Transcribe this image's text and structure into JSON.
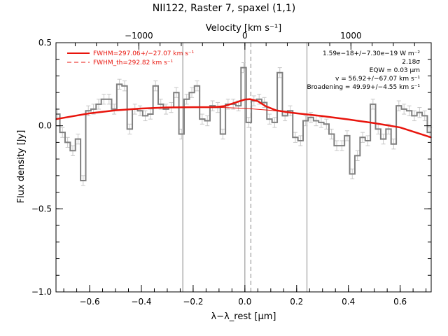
{
  "chart_data": {
    "type": "line",
    "title": "NII122, Raster 7, spaxel (1,1)",
    "xlabel": "λ−λ_rest [μm]",
    "ylabel": "Flux density [Jy]",
    "top_axis_label": "Velocity [km s⁻¹]",
    "xlim": [
      -0.73,
      0.72
    ],
    "ylim": [
      -1.0,
      0.5
    ],
    "x_ticks": [
      -0.6,
      -0.4,
      -0.2,
      0.0,
      0.2,
      0.4,
      0.6
    ],
    "x_tick_labels": [
      "−0.6",
      "−0.4",
      "−0.2",
      "0.0",
      "0.2",
      "0.4",
      "0.6"
    ],
    "y_ticks": [
      -1.0,
      -0.5,
      0.0,
      0.5
    ],
    "y_tick_labels": [
      "−1.0",
      "−0.5",
      "0.0",
      "0.5"
    ],
    "top_ticks_velocity": [
      -1000,
      0,
      1000
    ],
    "top_tick_labels": [
      "−1000",
      "0",
      "1000"
    ],
    "km_s_per_um": 2440,
    "vertical_lines_solid": [
      -0.24,
      0.0,
      0.24
    ],
    "vertical_line_dashed": 0.023,
    "series": [
      {
        "name": "Spectrum",
        "color": "#7f7f7f",
        "x": [
          -0.725,
          -0.705,
          -0.685,
          -0.665,
          -0.645,
          -0.625,
          -0.605,
          -0.585,
          -0.565,
          -0.545,
          -0.525,
          -0.505,
          -0.485,
          -0.465,
          -0.445,
          -0.425,
          -0.405,
          -0.385,
          -0.365,
          -0.345,
          -0.325,
          -0.305,
          -0.285,
          -0.265,
          -0.245,
          -0.225,
          -0.205,
          -0.185,
          -0.165,
          -0.145,
          -0.125,
          -0.105,
          -0.085,
          -0.065,
          -0.045,
          -0.025,
          -0.005,
          0.015,
          0.035,
          0.055,
          0.075,
          0.095,
          0.115,
          0.135,
          0.155,
          0.175,
          0.195,
          0.215,
          0.235,
          0.255,
          0.275,
          0.295,
          0.315,
          0.335,
          0.355,
          0.375,
          0.395,
          0.415,
          0.435,
          0.455,
          0.475,
          0.495,
          0.515,
          0.535,
          0.555,
          0.575,
          0.595,
          0.615,
          0.635,
          0.655,
          0.675,
          0.695,
          0.715
        ],
        "y": [
          0.07,
          -0.04,
          -0.1,
          -0.15,
          -0.08,
          -0.33,
          0.09,
          0.1,
          0.13,
          0.16,
          0.16,
          0.1,
          0.25,
          0.24,
          -0.02,
          0.1,
          0.09,
          0.06,
          0.07,
          0.24,
          0.13,
          0.1,
          0.11,
          0.2,
          -0.05,
          0.16,
          0.2,
          0.24,
          0.04,
          0.03,
          0.12,
          0.11,
          -0.05,
          0.13,
          0.13,
          0.12,
          0.35,
          0.02,
          0.15,
          0.16,
          0.14,
          0.04,
          0.02,
          0.32,
          0.06,
          0.09,
          -0.07,
          -0.09,
          0.03,
          0.05,
          0.03,
          0.02,
          0.01,
          -0.05,
          -0.12,
          -0.12,
          -0.06,
          -0.29,
          -0.18,
          -0.07,
          -0.09,
          0.13,
          -0.02,
          -0.08,
          -0.02,
          -0.11,
          0.12,
          0.1,
          0.09,
          0.06,
          0.08,
          0.06,
          -0.04
        ],
        "err": [
          0.03,
          0.03,
          0.03,
          0.03,
          0.03,
          0.03,
          0.03,
          0.03,
          0.03,
          0.03,
          0.03,
          0.03,
          0.03,
          0.03,
          0.03,
          0.03,
          0.03,
          0.03,
          0.03,
          0.03,
          0.03,
          0.03,
          0.03,
          0.03,
          0.03,
          0.03,
          0.03,
          0.03,
          0.03,
          0.03,
          0.03,
          0.03,
          0.03,
          0.03,
          0.03,
          0.03,
          0.03,
          0.03,
          0.03,
          0.03,
          0.03,
          0.03,
          0.03,
          0.03,
          0.03,
          0.03,
          0.03,
          0.03,
          0.03,
          0.03,
          0.03,
          0.03,
          0.03,
          0.03,
          0.03,
          0.03,
          0.03,
          0.03,
          0.03,
          0.03,
          0.03,
          0.03,
          0.03,
          0.03,
          0.03,
          0.03,
          0.03,
          0.03,
          0.03,
          0.03,
          0.03,
          0.03,
          0.03
        ]
      },
      {
        "name": "FWHM=297.06+/−27.07 km s⁻¹",
        "color": "#e8140c",
        "x": [
          -0.73,
          -0.6,
          -0.5,
          -0.4,
          -0.3,
          -0.2,
          -0.12,
          -0.08,
          -0.04,
          0.0,
          0.02,
          0.05,
          0.08,
          0.12,
          0.16,
          0.2,
          0.3,
          0.4,
          0.5,
          0.6,
          0.72
        ],
        "y": [
          0.04,
          0.075,
          0.093,
          0.104,
          0.11,
          0.112,
          0.112,
          0.118,
          0.138,
          0.158,
          0.16,
          0.148,
          0.118,
          0.093,
          0.083,
          0.075,
          0.058,
          0.038,
          0.016,
          -0.01,
          -0.07
        ]
      },
      {
        "name": "FWHM_th=292.82 km s⁻¹",
        "color": "#e8140c",
        "dashed": true,
        "x": [],
        "y": []
      }
    ],
    "continuum": {
      "color": "#e8140c",
      "x": [
        -0.73,
        -0.6,
        -0.5,
        -0.4,
        -0.3,
        -0.2,
        -0.1,
        0.0,
        0.1,
        0.2,
        0.3,
        0.4,
        0.5,
        0.6,
        0.72
      ],
      "y": [
        0.04,
        0.075,
        0.093,
        0.104,
        0.11,
        0.112,
        0.111,
        0.105,
        0.093,
        0.075,
        0.058,
        0.038,
        0.016,
        -0.01,
        -0.07
      ]
    },
    "legend_position": "top-left",
    "annotations": [
      "1.59e−18+/−7.30e−19 W m⁻²",
      "2.18σ",
      "EQW = 0.03 μm",
      "v = 56.92+/−67.07 km s⁻¹",
      "Broadening = 49.99+/−4.55 km s⁻¹"
    ]
  }
}
